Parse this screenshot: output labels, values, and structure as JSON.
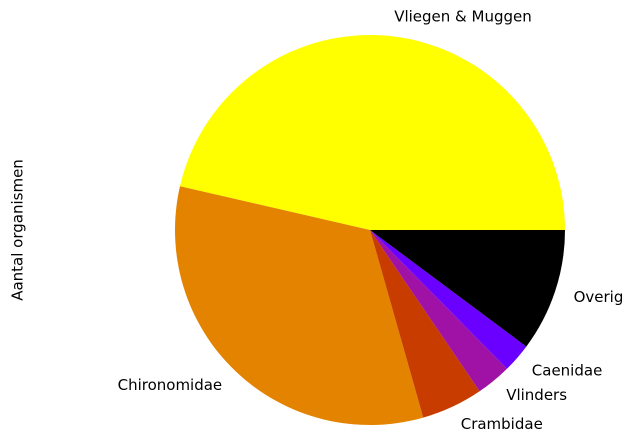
{
  "chart_data": {
    "type": "pie",
    "ylabel": "Aantal organismen",
    "categories": [
      "Vliegen & Muggen",
      "Chironomidae",
      "Crambidae",
      "Vlinders",
      "Caenidae",
      "Overig"
    ],
    "values": [
      46.4,
      33.0,
      5.1,
      2.9,
      2.4,
      10.2
    ],
    "colors": [
      "#ffff00",
      "#e38300",
      "#c83c00",
      "#a012a6",
      "#6a00ff",
      "#000000"
    ],
    "startangle": 0
  }
}
